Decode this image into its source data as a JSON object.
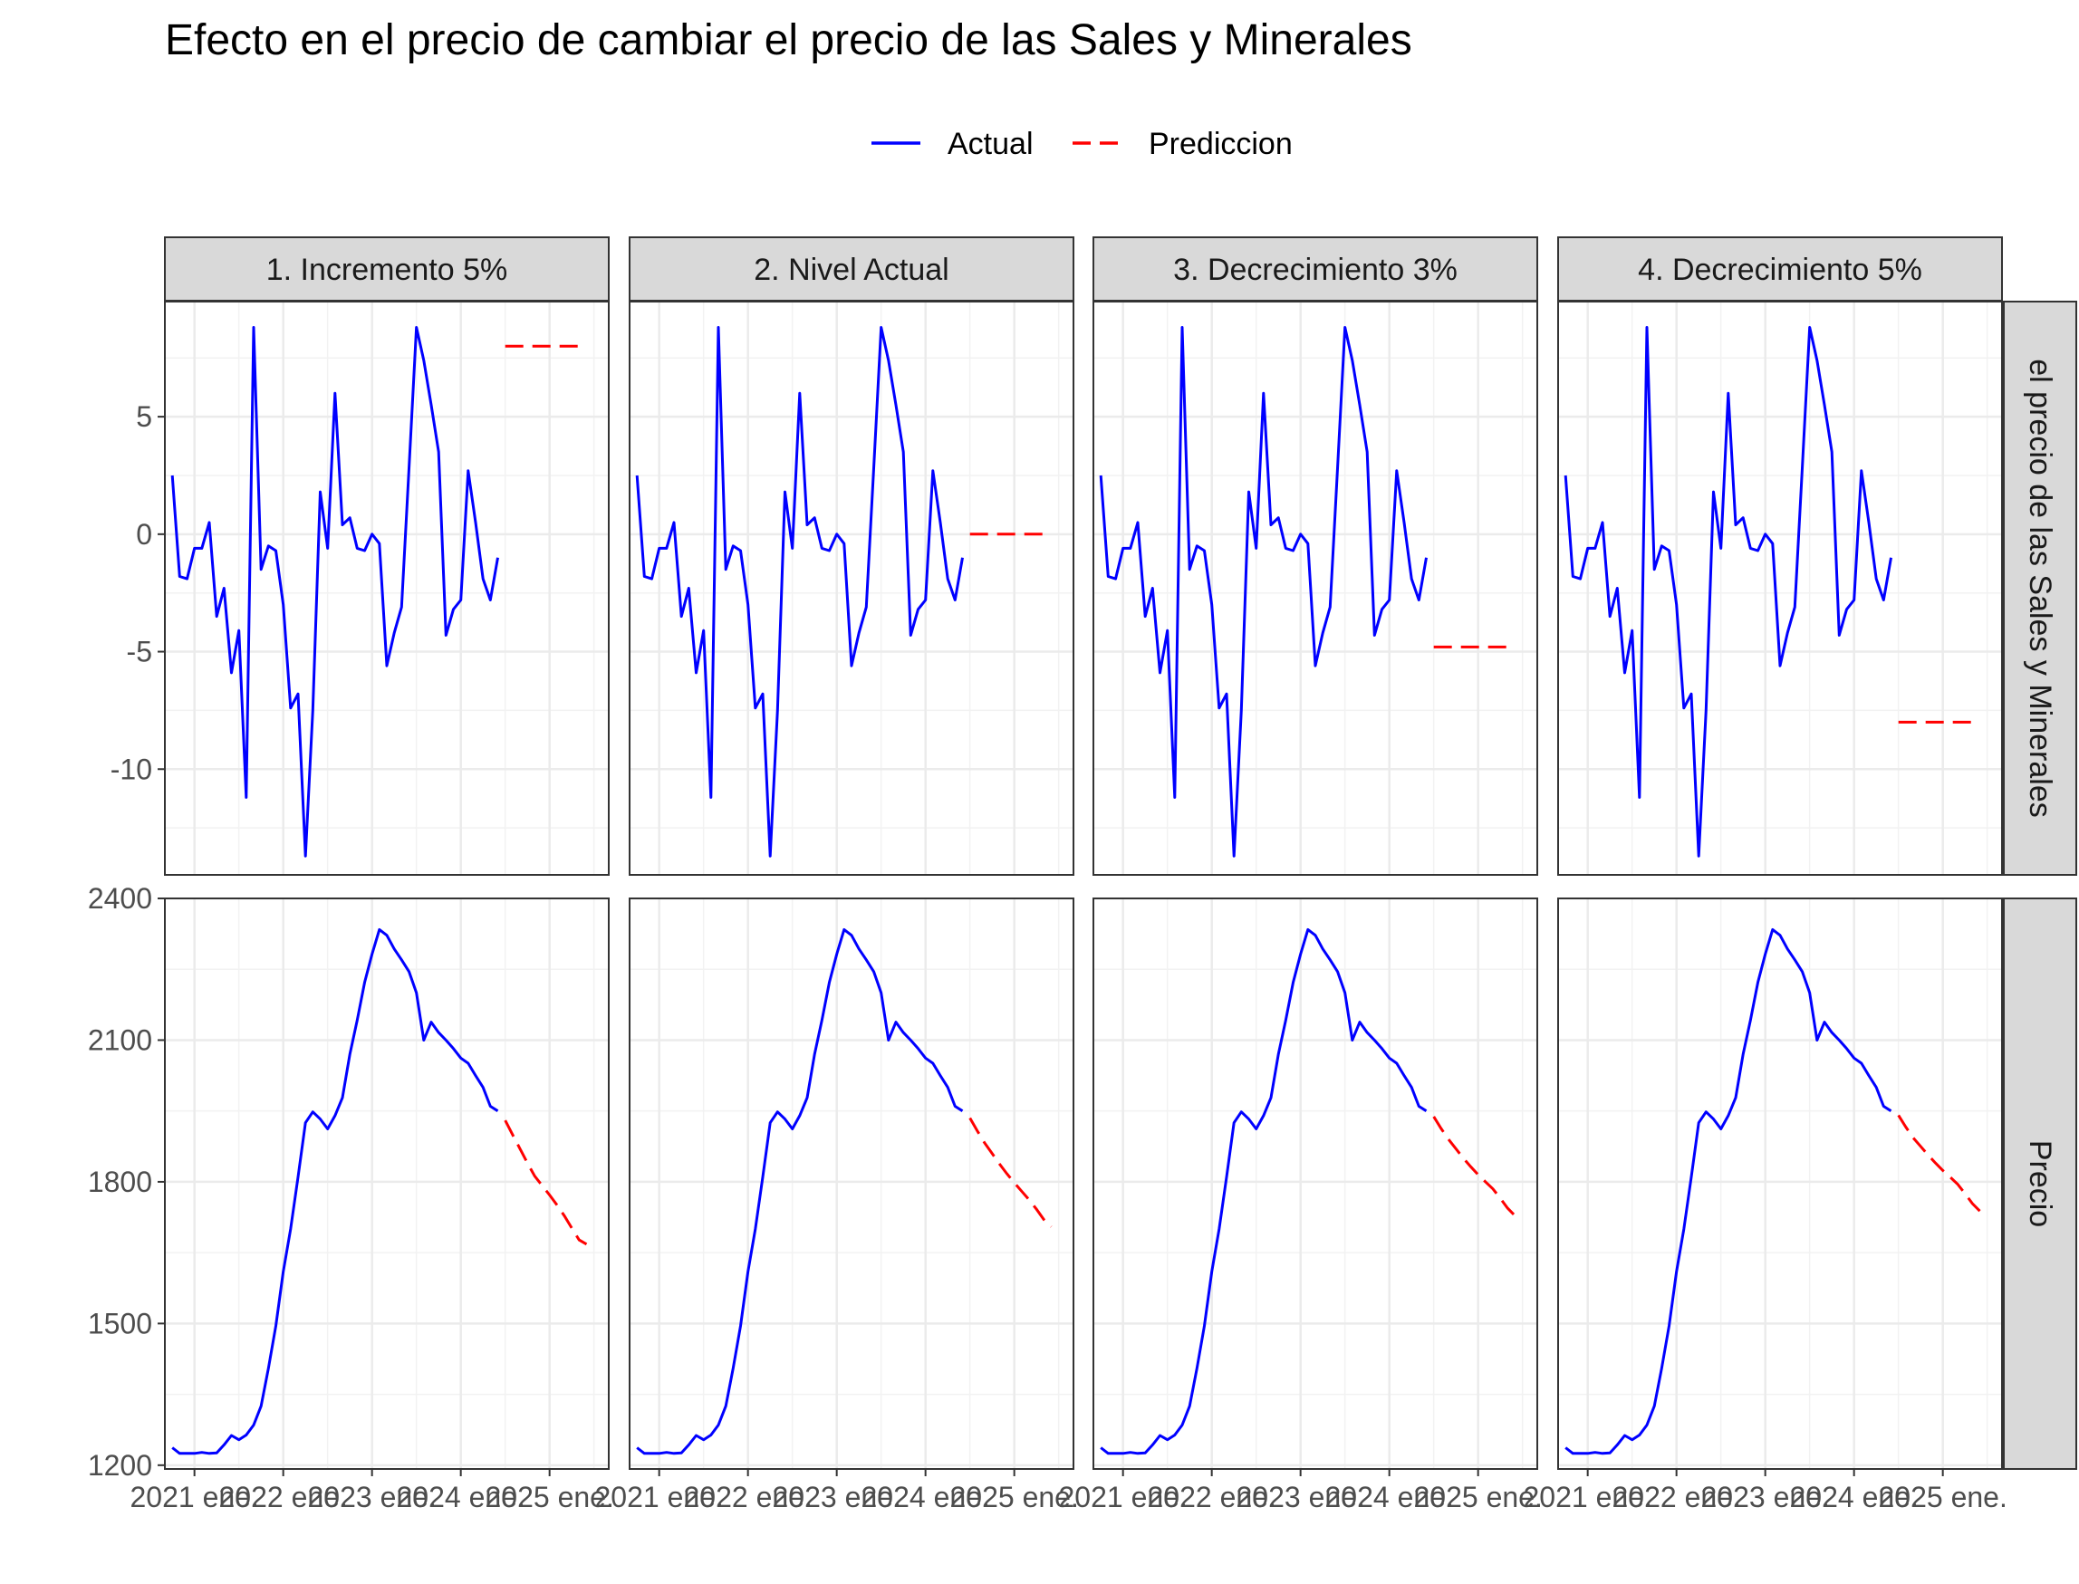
{
  "chart_data": {
    "type": "line",
    "title": "Efecto en el precio de cambiar el precio de las Sales y Minerales",
    "legend": {
      "placement": "top",
      "entries": [
        {
          "name": "Actual",
          "color": "#0000ff",
          "style": "solid"
        },
        {
          "name": "Prediccion",
          "color": "#ff0000",
          "style": "dashed"
        }
      ]
    },
    "facet_columns": [
      "1. Incremento 5%",
      "2. Nivel Actual",
      "3. Decrecimiento 3%",
      "4. Decrecimiento 5%"
    ],
    "facet_rows": [
      "el precio de las Sales y Minerales",
      "Precio"
    ],
    "x_axis": {
      "tick_labels": [
        "2021 ene.",
        "2022 ene.",
        "2023 ene.",
        "2024 ene.",
        "2025 ene."
      ],
      "tick_dates": [
        "2021-01",
        "2022-01",
        "2023-01",
        "2024-01",
        "2025-01"
      ],
      "range": [
        "2020-09",
        "2025-09"
      ]
    },
    "y_axes": [
      {
        "row": "el precio de las Sales y Minerales",
        "ticks": [
          -10,
          -5,
          0,
          5
        ],
        "tick_labels": [
          "-10",
          "-5",
          "0",
          "5"
        ],
        "range": [
          -14.5,
          9.9
        ]
      },
      {
        "row": "Precio",
        "ticks": [
          1200,
          1500,
          1800,
          2100,
          2400
        ],
        "tick_labels": [
          "1200",
          "1500",
          "1800",
          "2100",
          "2400"
        ],
        "range": [
          1192,
          2400
        ]
      }
    ],
    "grid": true,
    "series_actual": {
      "dates": [
        "2020-10",
        "2020-11",
        "2020-12",
        "2021-01",
        "2021-02",
        "2021-03",
        "2021-04",
        "2021-05",
        "2021-06",
        "2021-07",
        "2021-08",
        "2021-09",
        "2021-10",
        "2021-11",
        "2021-12",
        "2022-01",
        "2022-02",
        "2022-03",
        "2022-04",
        "2022-05",
        "2022-06",
        "2022-07",
        "2022-08",
        "2022-09",
        "2022-10",
        "2022-11",
        "2022-12",
        "2023-01",
        "2023-02",
        "2023-03",
        "2023-04",
        "2023-05",
        "2023-06",
        "2023-07",
        "2023-08",
        "2023-09",
        "2023-10",
        "2023-11",
        "2023-12",
        "2024-01",
        "2024-02",
        "2024-03",
        "2024-04",
        "2024-05",
        "2024-06"
      ],
      "sales_minerales": [
        2.5,
        -1.8,
        -1.9,
        -0.6,
        -0.6,
        0.5,
        -3.5,
        -2.3,
        -5.9,
        -4.1,
        -11.2,
        8.8,
        -1.5,
        -0.5,
        -0.7,
        -3.0,
        -7.4,
        -6.8,
        -13.7,
        -7.5,
        1.8,
        -0.6,
        6.0,
        0.4,
        0.7,
        -0.6,
        -0.7,
        0.0,
        -0.4,
        -5.6,
        -4.2,
        -3.1,
        2.8,
        8.8,
        7.4,
        5.5,
        3.5,
        -4.3,
        -3.2,
        -2.8,
        2.7,
        0.5,
        -1.9,
        -2.8,
        -1.0
      ],
      "precio": [
        1237,
        1225,
        1225,
        1225,
        1227,
        1225,
        1226,
        1243,
        1263,
        1254,
        1264,
        1285,
        1325,
        1405,
        1495,
        1610,
        1700,
        1810,
        1925,
        1948,
        1933,
        1912,
        1940,
        1978,
        2070,
        2142,
        2222,
        2282,
        2334,
        2322,
        2293,
        2270,
        2245,
        2200,
        2100,
        2138,
        2116,
        2100,
        2082,
        2062,
        2051,
        2025,
        2000,
        1960,
        1950
      ]
    },
    "series_prediccion": {
      "dates": [
        "2024-07",
        "2024-08",
        "2024-09",
        "2024-10",
        "2024-11",
        "2024-12",
        "2025-01",
        "2025-02",
        "2025-03",
        "2025-04",
        "2025-05",
        "2025-06"
      ],
      "sales_minerales": [
        8.0,
        0.0,
        -4.8,
        -8.0
      ],
      "precio": [
        [
          1930,
          1900,
          1870,
          1840,
          1812,
          1792,
          1772,
          1751,
          1728,
          1702,
          1677,
          1668
        ],
        [
          1935,
          1908,
          1882,
          1860,
          1838,
          1817,
          1798,
          1780,
          1762,
          1742,
          1720,
          1705
        ],
        [
          1938,
          1913,
          1890,
          1870,
          1850,
          1832,
          1815,
          1800,
          1785,
          1765,
          1744,
          1728
        ],
        [
          1941,
          1916,
          1893,
          1875,
          1857,
          1840,
          1824,
          1810,
          1795,
          1775,
          1754,
          1738
        ]
      ]
    }
  }
}
